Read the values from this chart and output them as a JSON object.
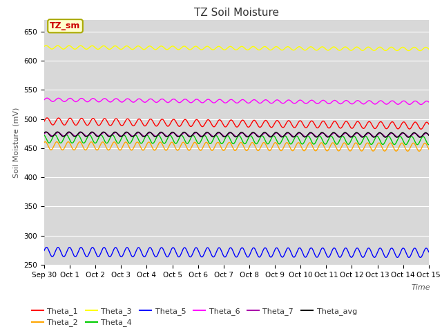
{
  "title": "TZ Soil Moisture",
  "xlabel": "Time",
  "ylabel": "Soil Moisture (mV)",
  "ylim": [
    250,
    670
  ],
  "yticks": [
    250,
    300,
    350,
    400,
    450,
    500,
    550,
    600,
    650
  ],
  "bg_color": "#d8d8d8",
  "fig_color": "#ffffff",
  "series": {
    "Theta_1": {
      "color": "#ff0000",
      "base": 496,
      "amp": 6,
      "freq": 14,
      "phase": 0.0,
      "trend": -0.5
    },
    "Theta_2": {
      "color": "#ffa500",
      "base": 454,
      "amp": 7,
      "freq": 14,
      "phase": 1.0,
      "trend": -0.15
    },
    "Theta_3": {
      "color": "#ffff00",
      "base": 623,
      "amp": 3,
      "freq": 14,
      "phase": 0.5,
      "trend": -0.2
    },
    "Theta_4": {
      "color": "#00cc00",
      "base": 466,
      "amp": 7,
      "freq": 14,
      "phase": 2.0,
      "trend": -0.2
    },
    "Theta_5": {
      "color": "#0000ff",
      "base": 272,
      "amp": 8,
      "freq": 14,
      "phase": 0.3,
      "trend": -0.1
    },
    "Theta_6": {
      "color": "#ff00ff",
      "base": 533,
      "amp": 3,
      "freq": 14,
      "phase": 0.0,
      "trend": -0.35
    },
    "Theta_7": {
      "color": "#aa00aa",
      "base": 474,
      "amp": 3,
      "freq": 14,
      "phase": 0.2,
      "trend": -0.1
    },
    "Theta_avg": {
      "color": "#000000",
      "base": 474,
      "amp": 4,
      "freq": 14,
      "phase": 0.6,
      "trend": -0.1
    }
  },
  "n_points": 1000,
  "x_start": 0,
  "x_end": 15,
  "xtick_positions": [
    0,
    1,
    2,
    3,
    4,
    5,
    6,
    7,
    8,
    9,
    10,
    11,
    12,
    13,
    14,
    15
  ],
  "xtick_labels": [
    "Sep 30",
    "Oct 1",
    "Oct 2",
    "Oct 3",
    "Oct 4",
    "Oct 5",
    "Oct 6",
    "Oct 7",
    "Oct 8",
    "Oct 9",
    "Oct 10",
    "Oct 11",
    "Oct 12",
    "Oct 13",
    "Oct 14",
    "Oct 15"
  ],
  "legend_label": "TZ_sm",
  "legend_bbox_facecolor": "#ffffcc",
  "legend_bbox_edgecolor": "#aaaa00",
  "legend_text_color": "#cc0000",
  "linewidth": 1.0,
  "title_fontsize": 11,
  "axis_label_fontsize": 8,
  "tick_fontsize": 7.5,
  "legend_fontsize": 8
}
